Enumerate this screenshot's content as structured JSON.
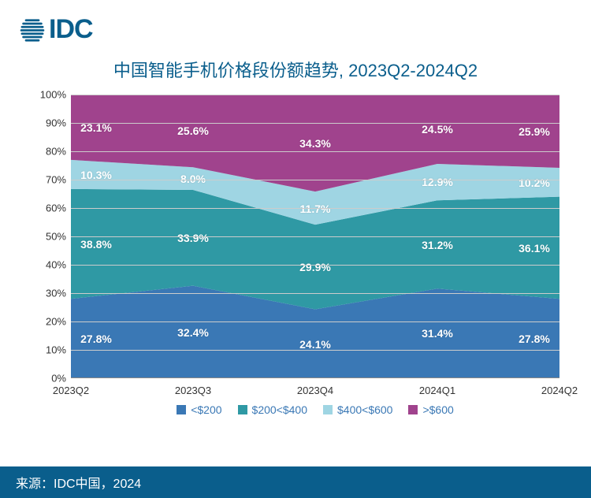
{
  "logo": {
    "text": "IDC",
    "color": "#0a5e8c",
    "mark_color": "#0a5e8c"
  },
  "title": {
    "text": "中国智能手机价格段份额趋势, 2023Q2-2024Q2",
    "color": "#0a5e8c",
    "fontsize": 22
  },
  "chart": {
    "type": "stacked-area-100",
    "categories": [
      "2023Q2",
      "2023Q3",
      "2023Q4",
      "2024Q1",
      "2024Q2"
    ],
    "series": [
      {
        "name": "<$200",
        "color": "#3a78b5",
        "values": [
          27.8,
          32.4,
          24.1,
          31.4,
          27.8
        ]
      },
      {
        "name": "$200<$400",
        "color": "#2f99a4",
        "values": [
          38.8,
          33.9,
          29.9,
          31.2,
          36.1
        ]
      },
      {
        "name": "$400<$600",
        "color": "#9fd5e3",
        "values": [
          10.3,
          8.0,
          11.7,
          12.9,
          10.2
        ]
      },
      {
        "name": ">$600",
        "color": "#a0438d",
        "values": [
          23.1,
          25.6,
          34.3,
          24.5,
          25.9
        ]
      }
    ],
    "label_fontsize": 14,
    "label_color": "#ffffff",
    "axis_color": "#333333",
    "grid_color": "#cccccc",
    "ylim": [
      0,
      100
    ],
    "ytick_step": 10,
    "ytick_suffix": "%",
    "background_color": "#ffffff",
    "display_labels": [
      [
        "27.8%",
        "32.4%",
        "24.1%",
        "31.4%",
        "27.8%"
      ],
      [
        "38.8%",
        "33.9%",
        "29.9%",
        "31.2%",
        "36.1%"
      ],
      [
        "10.3%",
        "8.0%",
        "11.7%",
        "12.9%",
        "10.2%"
      ],
      [
        "23.1%",
        "25.6%",
        "34.3%",
        "24.5%",
        "25.9%"
      ]
    ]
  },
  "legend": {
    "items": [
      "<$200",
      "$200<$400",
      "$400<$600",
      ">$600"
    ],
    "colors": [
      "#3a78b5",
      "#2f99a4",
      "#9fd5e3",
      "#a0438d"
    ],
    "text_color": "#3a78b5",
    "fontsize": 14
  },
  "source": {
    "text": "来源：IDC中国，2024",
    "bar_color": "#0a5e8c",
    "text_color": "#ffffff"
  }
}
